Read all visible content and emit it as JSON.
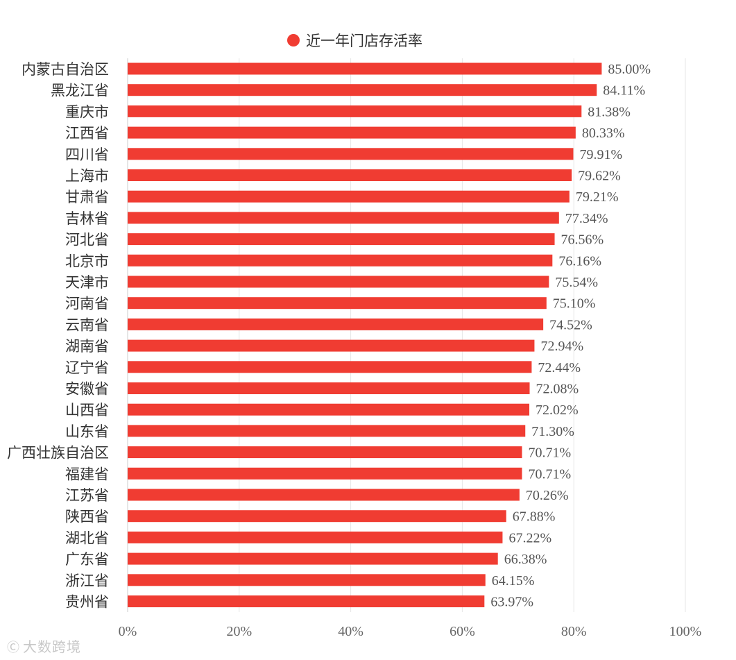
{
  "chart_data": {
    "type": "bar",
    "orientation": "horizontal",
    "categories": [
      "内蒙古自治区",
      "黑龙江省",
      "重庆市",
      "江西省",
      "四川省",
      "上海市",
      "甘肃省",
      "吉林省",
      "河北省",
      "北京市",
      "天津市",
      "河南省",
      "云南省",
      "湖南省",
      "辽宁省",
      "安徽省",
      "山西省",
      "山东省",
      "广西壮族自治区",
      "福建省",
      "江苏省",
      "陕西省",
      "湖北省",
      "广东省",
      "浙江省",
      "贵州省"
    ],
    "series": [
      {
        "name": "近一年门店存活率",
        "values": [
          85.0,
          84.11,
          81.38,
          80.33,
          79.91,
          79.62,
          79.21,
          77.34,
          76.56,
          76.16,
          75.54,
          75.1,
          74.52,
          72.94,
          72.44,
          72.08,
          72.02,
          71.3,
          70.71,
          70.71,
          70.26,
          67.88,
          67.22,
          66.38,
          64.15,
          63.97
        ],
        "labels": [
          "85.00%",
          "84.11%",
          "81.38%",
          "80.33%",
          "79.91%",
          "79.62%",
          "79.21%",
          "77.34%",
          "76.56%",
          "76.16%",
          "75.54%",
          "75.10%",
          "74.52%",
          "72.94%",
          "72.44%",
          "72.08%",
          "72.02%",
          "71.30%",
          "70.71%",
          "70.71%",
          "70.26%",
          "67.88%",
          "67.22%",
          "66.38%",
          "64.15%",
          "63.97%"
        ],
        "color": "#f03c32"
      }
    ],
    "xlim": [
      0,
      100
    ],
    "xticks": [
      0,
      20,
      40,
      60,
      80,
      100
    ],
    "xtick_labels": [
      "0%",
      "20%",
      "40%",
      "60%",
      "80%",
      "100%"
    ],
    "grid": "vertical",
    "legend": "top-center"
  },
  "watermark": {
    "text": "大数跨境",
    "icon": "logo-icon"
  },
  "colors": {
    "bar": "#f03c32",
    "grid": "#e6e6e6",
    "axis": "#cccccc"
  }
}
